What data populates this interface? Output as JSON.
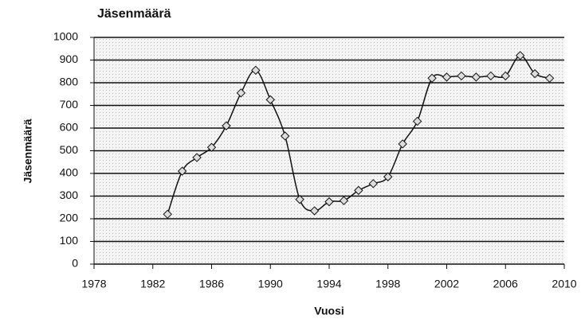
{
  "chart_data": {
    "type": "line",
    "title": "Jäsenmäärä",
    "y_label": "Jäsenmäärä",
    "x_label": "Vuosi",
    "x": [
      1983,
      1984,
      1985,
      1986,
      1987,
      1988,
      1989,
      1990,
      1991,
      1992,
      1993,
      1994,
      1995,
      1996,
      1997,
      1998,
      1999,
      2000,
      2001,
      2002,
      2003,
      2004,
      2005,
      2006,
      2007,
      2008,
      2009
    ],
    "series": [
      {
        "name": "Jäsenmäärä",
        "color": "#111111",
        "values": [
          220,
          410,
          470,
          515,
          610,
          755,
          855,
          725,
          565,
          285,
          235,
          275,
          280,
          325,
          355,
          385,
          530,
          630,
          820,
          825,
          830,
          825,
          830,
          830,
          920,
          840,
          820
        ]
      }
    ],
    "xlim": [
      1978,
      2010
    ],
    "xticks": [
      1978,
      1982,
      1986,
      1990,
      1994,
      1998,
      2002,
      2006,
      2010
    ],
    "ylim": [
      0,
      1000
    ],
    "yticks": [
      0,
      100,
      200,
      300,
      400,
      500,
      600,
      700,
      800,
      900,
      1000
    ],
    "grid": true
  }
}
